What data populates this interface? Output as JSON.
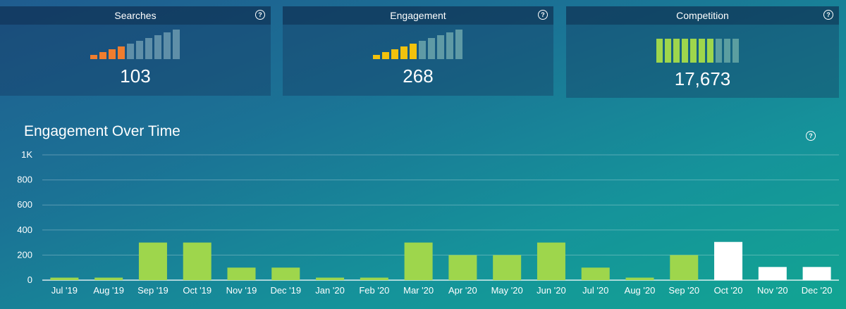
{
  "cards": {
    "searches": {
      "title": "Searches",
      "value": "103",
      "level": 4,
      "total": 10,
      "active_color": "#f07d2e",
      "inactive_color": "#5f8fa8"
    },
    "engagement": {
      "title": "Engagement",
      "value": "268",
      "level": 5,
      "total": 10,
      "active_color": "#f2c20d",
      "inactive_color": "#5f9aa5"
    },
    "competition": {
      "title": "Competition",
      "value": "17,673",
      "level": 7,
      "total": 10,
      "active_color": "#9ed64c",
      "inactive_color": "#5b9ea0"
    }
  },
  "help_icon_glyph": "?",
  "chart_title": "Engagement Over Time",
  "chart_data": {
    "type": "bar",
    "title": "Engagement Over Time",
    "xlabel": "",
    "ylabel": "",
    "ylim": [
      0,
      1000
    ],
    "yticks": [
      0,
      200,
      400,
      600,
      800,
      1000
    ],
    "ytick_labels": [
      "0",
      "200",
      "400",
      "600",
      "800",
      "1K"
    ],
    "categories": [
      "Jul '19",
      "Aug '19",
      "Sep '19",
      "Oct '19",
      "Nov '19",
      "Dec '19",
      "Jan '20",
      "Feb '20",
      "Mar '20",
      "Apr '20",
      "May '20",
      "Jun '20",
      "Jul '20",
      "Aug '20",
      "Sep '20",
      "Oct '20",
      "Nov '20",
      "Dec '20"
    ],
    "values": [
      20,
      20,
      300,
      300,
      100,
      100,
      20,
      20,
      300,
      200,
      200,
      300,
      100,
      20,
      200,
      305,
      105,
      105
    ],
    "bar_colors": [
      "#9ed64c",
      "#9ed64c",
      "#9ed64c",
      "#9ed64c",
      "#9ed64c",
      "#9ed64c",
      "#9ed64c",
      "#9ed64c",
      "#9ed64c",
      "#9ed64c",
      "#9ed64c",
      "#9ed64c",
      "#9ed64c",
      "#9ed64c",
      "#9ed64c",
      "#ffffff",
      "#ffffff",
      "#ffffff"
    ]
  }
}
